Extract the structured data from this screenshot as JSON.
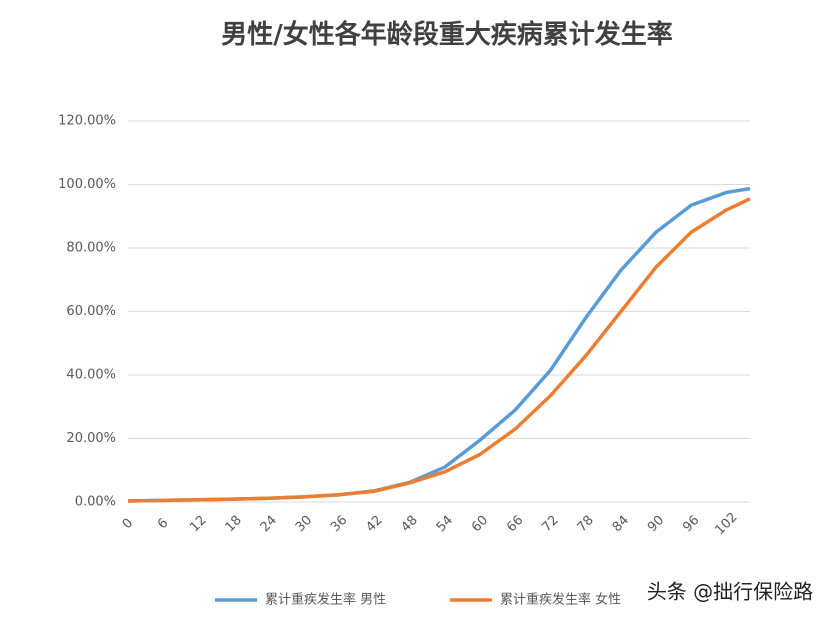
{
  "chart_data": {
    "type": "line",
    "title": "男性/女性各年龄段重大疾病累计发生率",
    "x": [
      0,
      6,
      12,
      18,
      24,
      30,
      36,
      42,
      48,
      54,
      60,
      66,
      72,
      78,
      84,
      90,
      96,
      102,
      106
    ],
    "series": [
      {
        "name": "累计重疾发生率 男性",
        "color": "#5b9bd5",
        "values": [
          0.3,
          0.5,
          0.7,
          0.9,
          1.2,
          1.6,
          2.3,
          3.5,
          6.2,
          11,
          19.5,
          29,
          41.5,
          58,
          73,
          85,
          93.5,
          97.5,
          98.7
        ]
      },
      {
        "name": "累计重疾发生率 女性",
        "color": "#ed7d31",
        "values": [
          0.3,
          0.5,
          0.7,
          0.9,
          1.2,
          1.6,
          2.3,
          3.4,
          6,
          9.5,
          15,
          23,
          33.5,
          46,
          60,
          74,
          85,
          92,
          95.5
        ]
      }
    ],
    "xlim": [
      0,
      106
    ],
    "xticks": [
      0,
      6,
      12,
      18,
      24,
      30,
      36,
      42,
      48,
      54,
      60,
      66,
      72,
      78,
      84,
      90,
      96,
      102
    ],
    "ylim": [
      0,
      120
    ],
    "yticks": [
      {
        "value": 0,
        "label": "0.00%"
      },
      {
        "value": 20,
        "label": "20.00%"
      },
      {
        "value": 40,
        "label": "40.00%"
      },
      {
        "value": 60,
        "label": "60.00%"
      },
      {
        "value": 80,
        "label": "80.00%"
      },
      {
        "value": 100,
        "label": "100.00%"
      },
      {
        "value": 120,
        "label": "120.00%"
      }
    ],
    "grid": true,
    "legend": "bottom",
    "watermark": "头条 @拙行保险路"
  }
}
